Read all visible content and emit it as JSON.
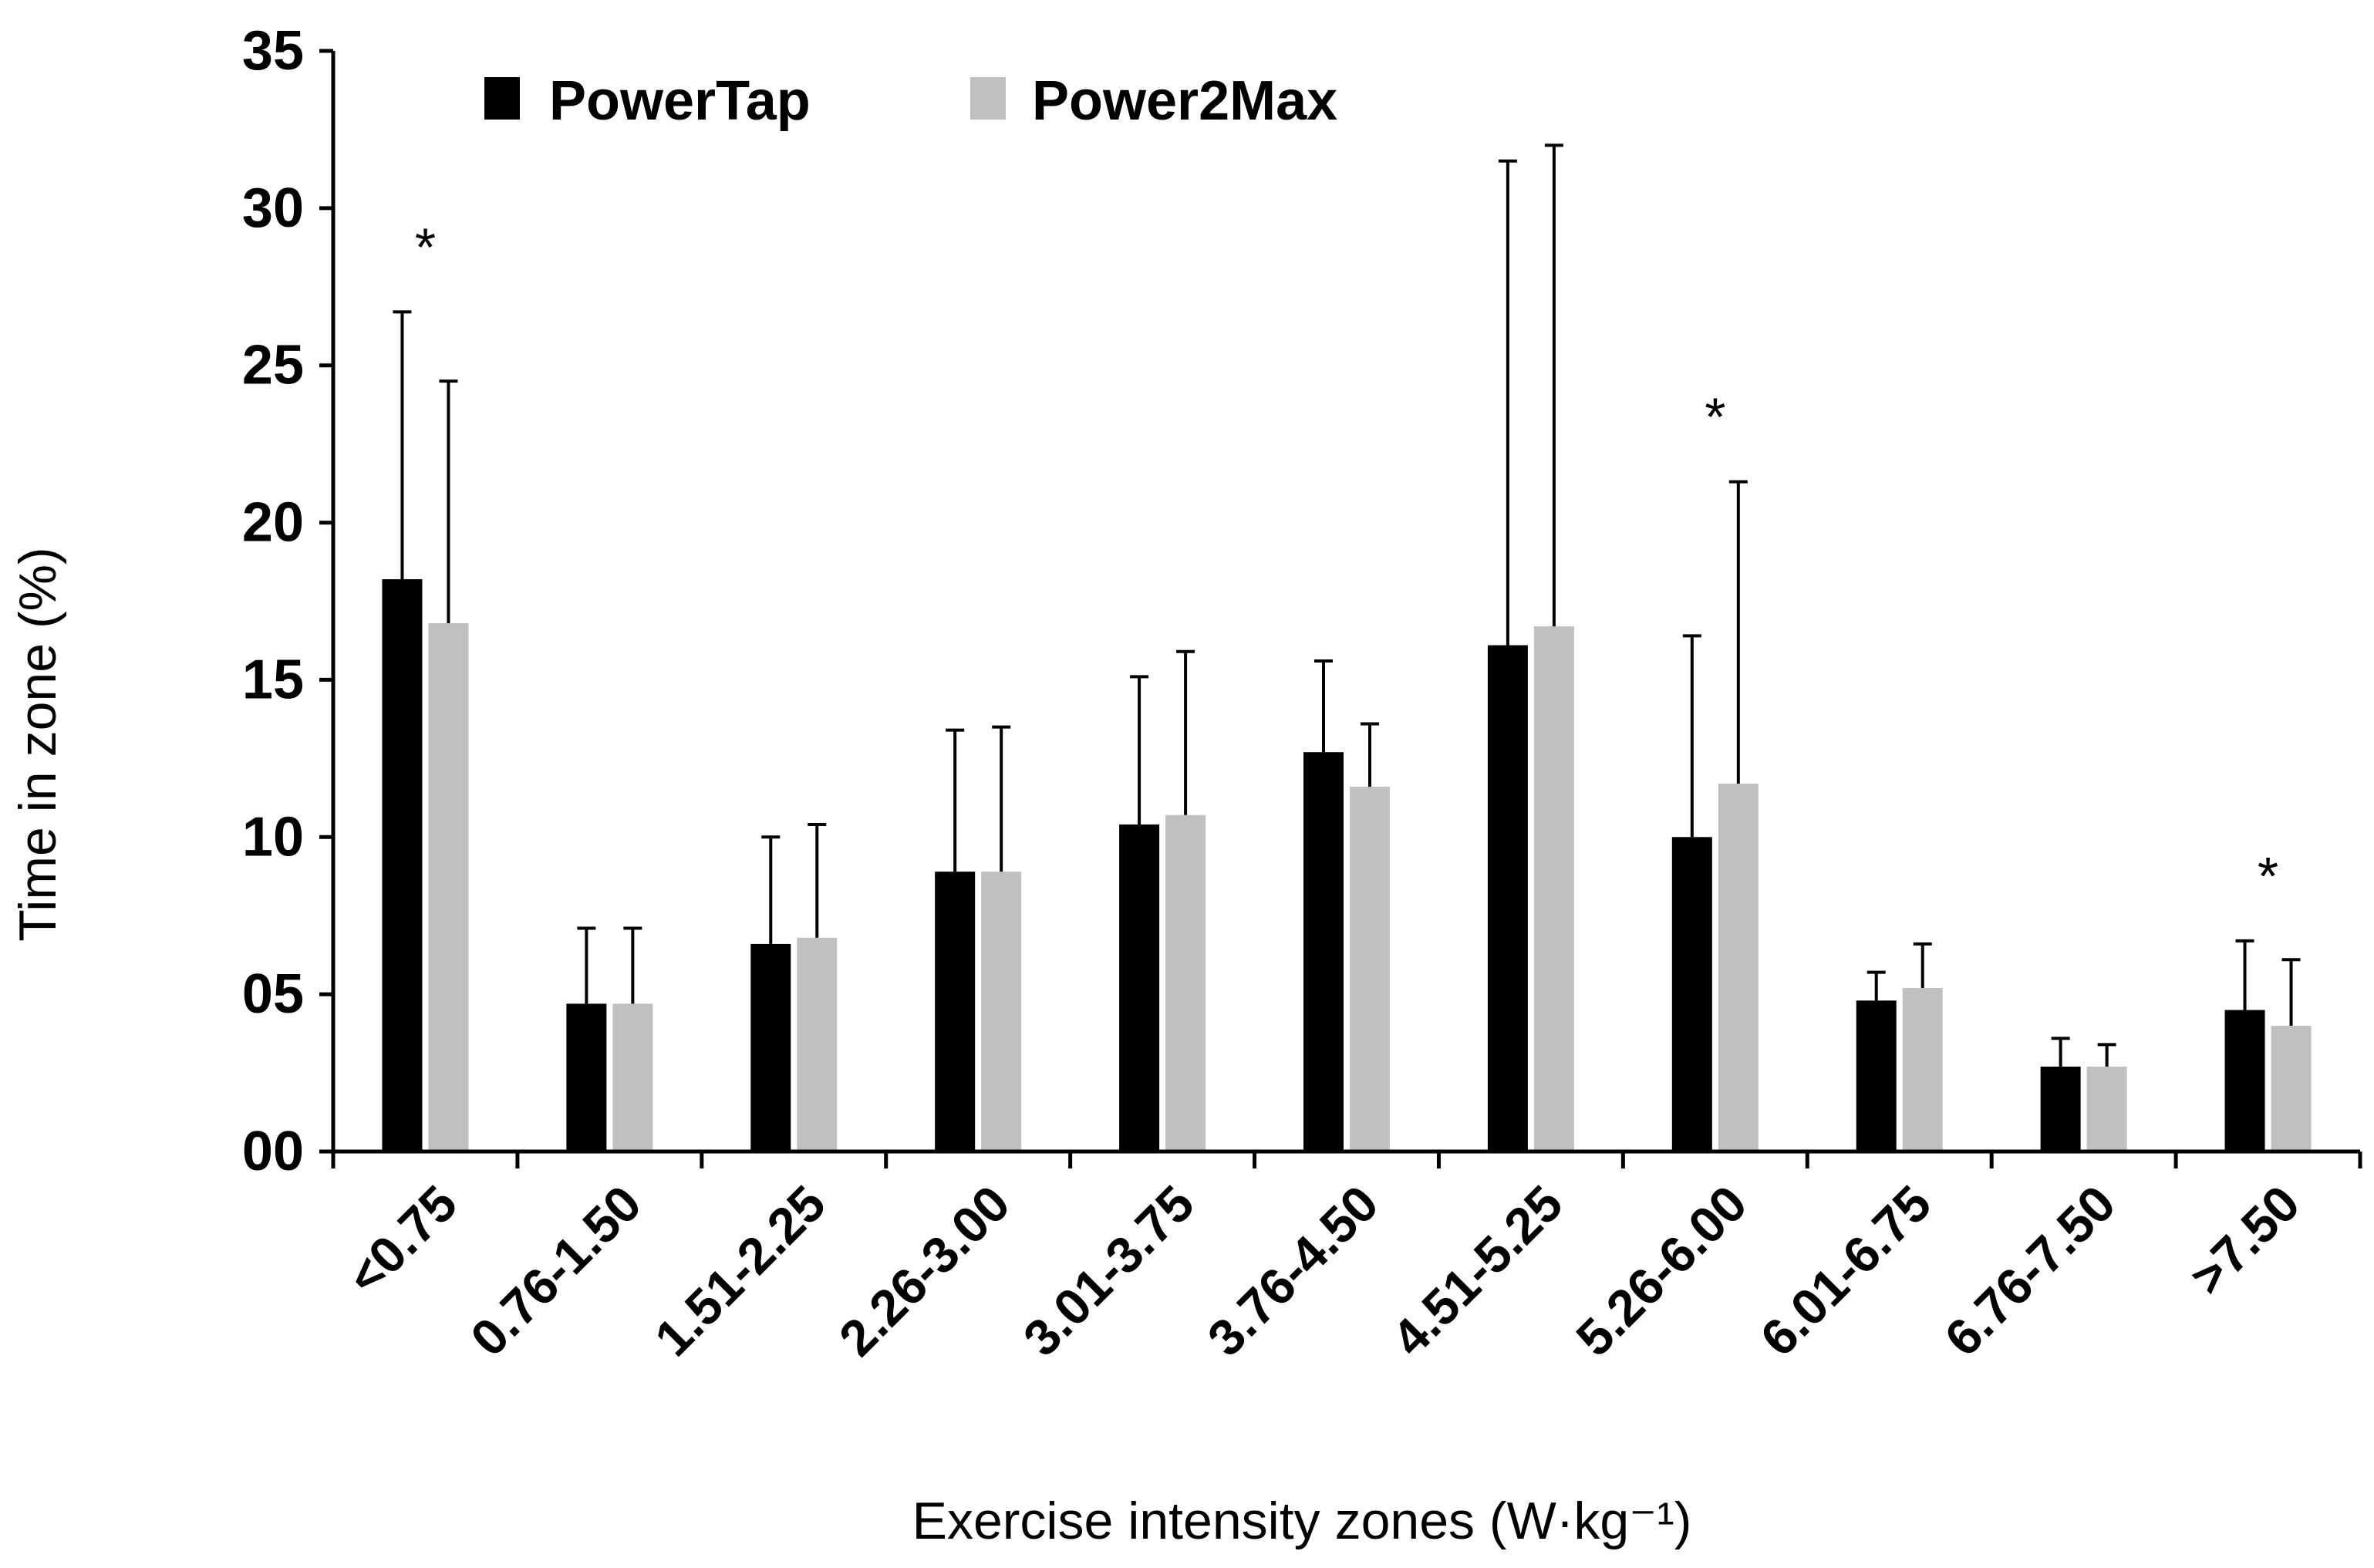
{
  "chart_data": {
    "type": "bar",
    "xlabel": "Exercise intensity zones (W·kg⁻¹)",
    "ylabel": "Time in zone (%)",
    "ylim": [
      0,
      35
    ],
    "yticks": [
      "00",
      "05",
      "10",
      "15",
      "20",
      "25",
      "30",
      "35"
    ],
    "ytick_values": [
      0,
      5,
      10,
      15,
      20,
      25,
      30,
      35
    ],
    "categories": [
      "<0.75",
      "0.76-1.50",
      "1.51-2.25",
      "2.26-3.00",
      "3.01-3.75",
      "3.76-4.50",
      "4.51-5.25",
      "5.26-6.00",
      "6.01-6.75",
      "6.76-7.50",
      ">7.50"
    ],
    "series": [
      {
        "name": "PowerTap",
        "color": "#000000",
        "values": [
          18.2,
          4.7,
          6.6,
          8.9,
          10.4,
          12.7,
          16.1,
          10.0,
          4.8,
          2.7,
          4.5
        ],
        "error_upper": [
          26.7,
          7.1,
          10.0,
          13.4,
          15.1,
          15.6,
          31.5,
          16.4,
          5.7,
          3.6,
          6.7
        ]
      },
      {
        "name": "Power2Max",
        "color": "#c0c0c0",
        "values": [
          16.8,
          4.7,
          6.8,
          8.9,
          10.7,
          11.6,
          16.7,
          11.7,
          5.2,
          2.7,
          4.0
        ],
        "error_upper": [
          24.5,
          7.1,
          10.4,
          13.5,
          15.9,
          13.6,
          32.0,
          21.3,
          6.6,
          3.4,
          6.1
        ]
      }
    ],
    "annotations": [
      {
        "category": "<0.75",
        "text": "*"
      },
      {
        "category": "5.26-6.00",
        "text": "*"
      },
      {
        "category": ">7.50",
        "text": "*"
      }
    ],
    "legend": {
      "placement": "top-left"
    },
    "grid": false
  }
}
